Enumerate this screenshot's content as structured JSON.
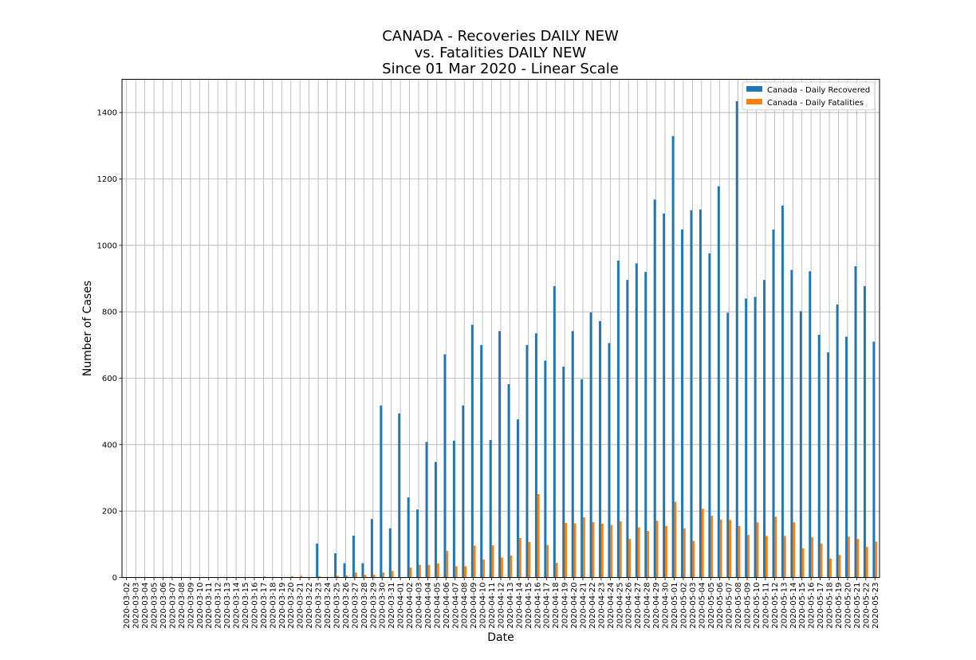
{
  "chart_data": {
    "type": "bar",
    "title": [
      "CANADA - Recoveries DAILY NEW",
      "vs. Fatalities DAILY NEW",
      "Since 01 Mar 2020 - Linear Scale"
    ],
    "xlabel": "Date",
    "ylabel": "Number of Cases",
    "ylim": [
      0,
      1500
    ],
    "yticks": [
      0,
      200,
      400,
      600,
      800,
      1000,
      1200,
      1400
    ],
    "grid": true,
    "legend_position": "top-right",
    "colors": {
      "recovered": "#1f77b4",
      "fatalities": "#ff7f0e"
    },
    "categories": [
      "2020-03-02",
      "2020-03-03",
      "2020-03-04",
      "2020-03-05",
      "2020-03-06",
      "2020-03-07",
      "2020-03-08",
      "2020-03-09",
      "2020-03-10",
      "2020-03-11",
      "2020-03-12",
      "2020-03-13",
      "2020-03-14",
      "2020-03-15",
      "2020-03-16",
      "2020-03-17",
      "2020-03-18",
      "2020-03-19",
      "2020-03-20",
      "2020-03-21",
      "2020-03-22",
      "2020-03-23",
      "2020-03-24",
      "2020-03-25",
      "2020-03-26",
      "2020-03-27",
      "2020-03-28",
      "2020-03-29",
      "2020-03-30",
      "2020-03-31",
      "2020-04-01",
      "2020-04-02",
      "2020-04-03",
      "2020-04-04",
      "2020-04-05",
      "2020-04-06",
      "2020-04-07",
      "2020-04-08",
      "2020-04-09",
      "2020-04-10",
      "2020-04-11",
      "2020-04-12",
      "2020-04-13",
      "2020-04-14",
      "2020-04-15",
      "2020-04-16",
      "2020-04-17",
      "2020-04-18",
      "2020-04-19",
      "2020-04-20",
      "2020-04-21",
      "2020-04-22",
      "2020-04-23",
      "2020-04-24",
      "2020-04-25",
      "2020-04-26",
      "2020-04-27",
      "2020-04-28",
      "2020-04-29",
      "2020-04-30",
      "2020-05-01",
      "2020-05-02",
      "2020-05-03",
      "2020-05-04",
      "2020-05-05",
      "2020-05-06",
      "2020-05-07",
      "2020-05-08",
      "2020-05-09",
      "2020-05-10",
      "2020-05-11",
      "2020-05-12",
      "2020-05-13",
      "2020-05-14",
      "2020-05-15",
      "2020-05-16",
      "2020-05-17",
      "2020-05-18",
      "2020-05-19",
      "2020-05-20",
      "2020-05-21",
      "2020-05-22",
      "2020-05-23"
    ],
    "series": [
      {
        "name": "Canada - Daily Recovered",
        "values": [
          0,
          0,
          0,
          0,
          0,
          2,
          0,
          0,
          0,
          0,
          0,
          0,
          0,
          0,
          0,
          0,
          0,
          0,
          0,
          0,
          0,
          102,
          0,
          73,
          43,
          126,
          43,
          176,
          518,
          148,
          494,
          241,
          205,
          408,
          348,
          672,
          412,
          518,
          761,
          700,
          414,
          742,
          582,
          476,
          700,
          735,
          653,
          877,
          635,
          742,
          597,
          798,
          772,
          706,
          954,
          896,
          946,
          920,
          1138,
          1096,
          1329,
          1048,
          1106,
          1108,
          976,
          1178,
          797,
          1434,
          840,
          845,
          896,
          1048,
          1120,
          926,
          802,
          922,
          731,
          678,
          822,
          725,
          937,
          877,
          710
        ]
      },
      {
        "name": "Canada - Daily Fatalities",
        "values": [
          0,
          0,
          0,
          0,
          0,
          0,
          0,
          1,
          0,
          0,
          0,
          0,
          0,
          0,
          1,
          3,
          1,
          1,
          4,
          5,
          0,
          4,
          0,
          5,
          6,
          15,
          8,
          8,
          15,
          20,
          1,
          30,
          38,
          38,
          42,
          80,
          34,
          34,
          96,
          54,
          97,
          60,
          66,
          119,
          107,
          251,
          98,
          44,
          164,
          163,
          181,
          167,
          162,
          158,
          169,
          116,
          151,
          140,
          171,
          155,
          228,
          148,
          110,
          207,
          186,
          175,
          173,
          155,
          128,
          166,
          125,
          183,
          125,
          166,
          88,
          121,
          102,
          57,
          68,
          123,
          116,
          92,
          108
        ]
      }
    ]
  }
}
